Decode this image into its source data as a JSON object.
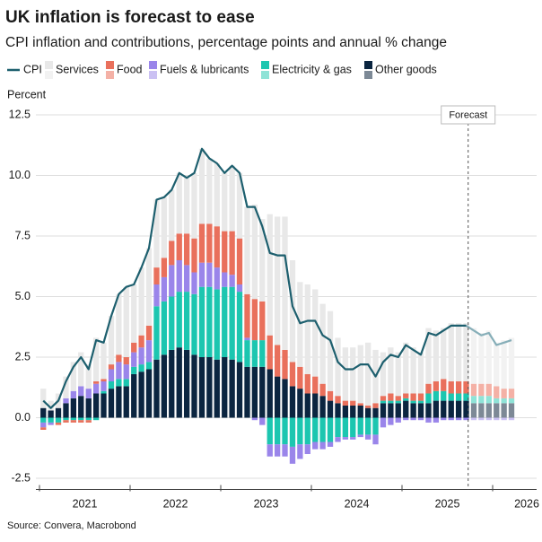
{
  "chart_data": {
    "type": "bar",
    "title": "UK inflation is forecast to ease",
    "subtitle": "CPI inflation and contributions, percentage points and annual % change",
    "y_label": "Percent",
    "source": "Source: Convera, Macrobond",
    "annotation": {
      "text": "Forecast",
      "x": 2025.73
    },
    "grid": true,
    "stacked": true,
    "xlim": [
      2021,
      2026.5
    ],
    "xticks": [
      2021,
      2022,
      2023,
      2024,
      2025,
      2026
    ],
    "ylim": [
      -3,
      13
    ],
    "yticks": [
      -2.5,
      {
        "value": 0,
        "label": "0.0"
      },
      2.5,
      {
        "value": 5,
        "label": "5.0"
      },
      7.5,
      {
        "value": 10,
        "label": "10.0"
      },
      12.5
    ],
    "x": [
      2021.042,
      2021.125,
      2021.208,
      2021.292,
      2021.375,
      2021.458,
      2021.542,
      2021.625,
      2021.708,
      2021.792,
      2021.875,
      2021.958,
      2022.042,
      2022.125,
      2022.208,
      2022.292,
      2022.375,
      2022.458,
      2022.542,
      2022.625,
      2022.708,
      2022.792,
      2022.875,
      2022.958,
      2023.042,
      2023.125,
      2023.208,
      2023.292,
      2023.375,
      2023.458,
      2023.542,
      2023.625,
      2023.708,
      2023.792,
      2023.875,
      2023.958,
      2024.042,
      2024.125,
      2024.208,
      2024.292,
      2024.375,
      2024.458,
      2024.542,
      2024.625,
      2024.708,
      2024.792,
      2024.875,
      2024.958,
      2025.042,
      2025.125,
      2025.208,
      2025.292,
      2025.375,
      2025.458,
      2025.542,
      2025.625,
      2025.708,
      2025.792,
      2025.875,
      2025.958,
      2026.042,
      2026.125,
      2026.208
    ],
    "series": [
      {
        "name": "CPI",
        "type": "line",
        "color": "#1d5f6e",
        "forecast_color": "#86aeb8",
        "values": [
          0.7,
          0.4,
          0.7,
          1.5,
          2.1,
          2.5,
          2.0,
          3.2,
          3.1,
          4.2,
          5.1,
          5.4,
          5.5,
          6.2,
          7.0,
          9.0,
          9.1,
          9.4,
          10.1,
          9.9,
          10.1,
          11.1,
          10.7,
          10.5,
          10.1,
          10.4,
          10.1,
          8.7,
          8.7,
          7.9,
          6.8,
          6.7,
          6.7,
          4.6,
          3.9,
          4.0,
          4.0,
          3.4,
          3.2,
          2.3,
          2.0,
          2.0,
          2.2,
          2.2,
          1.7,
          2.3,
          2.6,
          2.5,
          3.0,
          2.8,
          2.6,
          3.5,
          3.4,
          3.6,
          3.8,
          3.8,
          3.8,
          3.6,
          3.4,
          3.5,
          3.0,
          3.1,
          3.2
        ]
      },
      {
        "name": "Services",
        "type": "bar",
        "color": "#e8e8e8",
        "forecast_color": "#f2f2f2",
        "values": [
          0.8,
          0.4,
          0.6,
          0.9,
          1.2,
          1.4,
          1.0,
          1.8,
          1.5,
          2.0,
          2.5,
          2.9,
          2.4,
          2.8,
          3.2,
          2.8,
          2.5,
          2.1,
          2.5,
          2.3,
          2.7,
          3.1,
          2.7,
          2.6,
          2.4,
          2.7,
          2.7,
          3.6,
          3.9,
          3.4,
          5.0,
          5.3,
          5.5,
          4.2,
          3.5,
          3.7,
          3.6,
          3.3,
          3.3,
          2.4,
          2.2,
          2.2,
          2.4,
          2.6,
          2.2,
          1.8,
          1.9,
          1.8,
          2.1,
          1.9,
          1.7,
          2.3,
          2.1,
          2.1,
          2.4,
          2.4,
          2.4,
          2.3,
          2.1,
          2.2,
          1.8,
          2.0,
          2.1
        ]
      },
      {
        "name": "Food",
        "type": "bar",
        "color": "#e9705c",
        "forecast_color": "#f4b1a6",
        "values": [
          -0.1,
          0.0,
          -0.1,
          -0.1,
          -0.1,
          -0.1,
          -0.1,
          0.1,
          0.1,
          0.2,
          0.3,
          0.3,
          0.4,
          0.5,
          0.6,
          0.7,
          0.8,
          1.0,
          1.1,
          1.3,
          1.4,
          1.6,
          1.6,
          1.7,
          1.7,
          1.8,
          1.9,
          1.8,
          1.7,
          1.6,
          1.4,
          1.3,
          1.2,
          1.0,
          0.9,
          0.8,
          0.7,
          0.5,
          0.4,
          0.3,
          0.2,
          0.2,
          0.1,
          0.1,
          0.2,
          0.2,
          0.3,
          0.2,
          0.2,
          0.3,
          0.3,
          0.4,
          0.4,
          0.5,
          0.5,
          0.5,
          0.5,
          0.5,
          0.5,
          0.5,
          0.5,
          0.4,
          0.4
        ]
      },
      {
        "name": "Fuels & lubricants",
        "type": "bar",
        "color": "#9a85ea",
        "forecast_color": "#cbc1f3",
        "values": [
          -0.2,
          -0.1,
          0.0,
          0.2,
          0.3,
          0.4,
          0.4,
          0.4,
          0.4,
          0.5,
          0.7,
          0.6,
          0.6,
          0.7,
          0.9,
          0.9,
          1.0,
          1.3,
          1.3,
          1.1,
          0.9,
          1.0,
          1.0,
          0.9,
          0.6,
          0.5,
          0.3,
          0.1,
          -0.1,
          -0.3,
          -0.5,
          -0.5,
          -0.5,
          -0.7,
          -0.6,
          -0.4,
          -0.3,
          -0.3,
          -0.2,
          -0.2,
          -0.1,
          -0.1,
          -0.1,
          -0.2,
          -0.4,
          -0.4,
          -0.3,
          -0.2,
          -0.1,
          -0.1,
          -0.1,
          -0.2,
          -0.2,
          -0.1,
          -0.1,
          -0.1,
          -0.1,
          -0.1,
          -0.1,
          -0.1,
          -0.1,
          -0.1,
          -0.1
        ]
      },
      {
        "name": "Electricity & gas",
        "type": "bar",
        "color": "#1cc6b0",
        "forecast_color": "#8fe3d7",
        "values": [
          -0.2,
          -0.2,
          -0.2,
          -0.1,
          -0.1,
          -0.1,
          -0.1,
          -0.1,
          0.1,
          0.3,
          0.3,
          0.3,
          0.3,
          0.3,
          0.3,
          2.2,
          2.2,
          2.2,
          2.3,
          2.4,
          2.5,
          2.9,
          2.9,
          2.9,
          2.9,
          3.0,
          2.9,
          1.1,
          1.1,
          1.1,
          -1.1,
          -1.1,
          -1.1,
          -1.2,
          -1.1,
          -1.1,
          -1.0,
          -1.0,
          -1.0,
          -0.8,
          -0.8,
          -0.8,
          -0.7,
          -0.7,
          -0.7,
          0.1,
          0.1,
          0.1,
          0.1,
          0.1,
          0.1,
          0.4,
          0.4,
          0.4,
          0.3,
          0.3,
          0.3,
          0.3,
          0.3,
          0.3,
          0.2,
          0.2,
          0.2
        ]
      },
      {
        "name": "Other goods",
        "type": "bar",
        "color": "#0b2540",
        "forecast_color": "#7d8996",
        "values": [
          0.4,
          0.3,
          0.4,
          0.6,
          0.8,
          0.9,
          0.8,
          1.0,
          1.0,
          1.2,
          1.3,
          1.3,
          1.8,
          1.9,
          2.0,
          2.4,
          2.6,
          2.8,
          2.9,
          2.8,
          2.6,
          2.5,
          2.5,
          2.4,
          2.5,
          2.4,
          2.3,
          2.1,
          2.1,
          2.1,
          2.0,
          1.7,
          1.6,
          1.3,
          1.2,
          1.0,
          1.0,
          0.9,
          0.7,
          0.6,
          0.5,
          0.5,
          0.5,
          0.4,
          0.4,
          0.6,
          0.6,
          0.6,
          0.7,
          0.6,
          0.6,
          0.6,
          0.7,
          0.7,
          0.7,
          0.7,
          0.7,
          0.6,
          0.6,
          0.6,
          0.6,
          0.6,
          0.6
        ]
      }
    ]
  }
}
